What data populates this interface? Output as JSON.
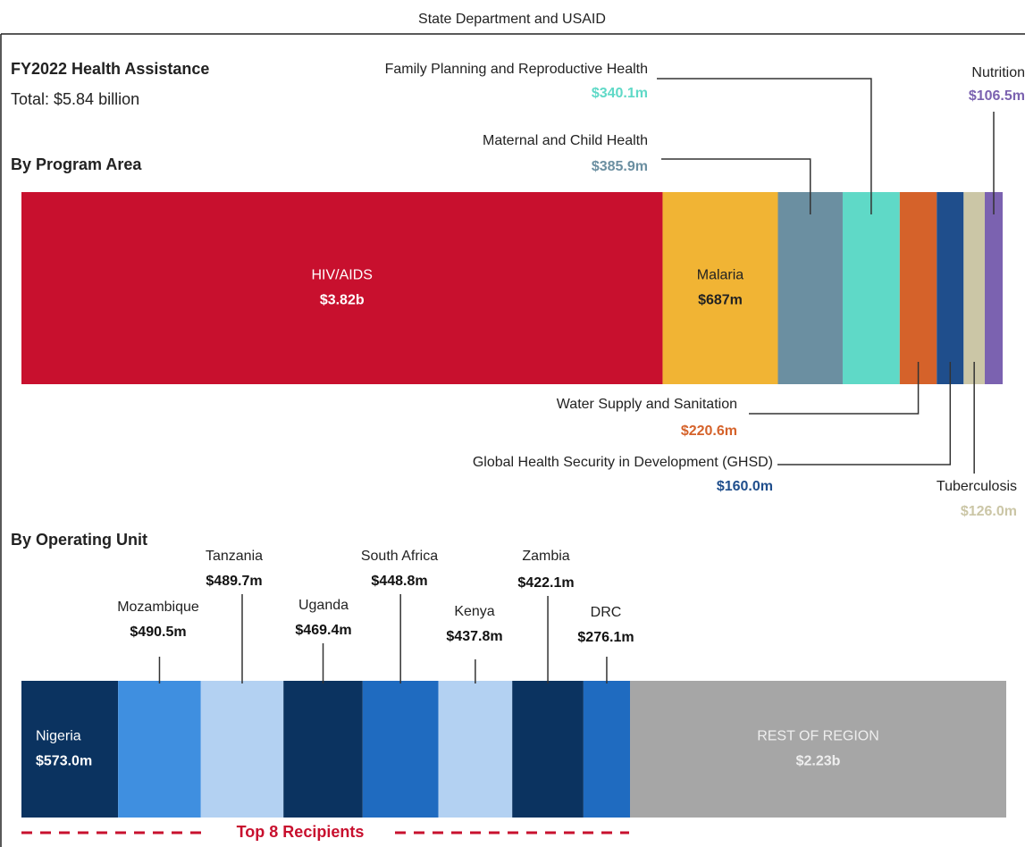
{
  "page": {
    "subtitle": "State Department and USAID",
    "title": "FY2022 Health Assistance",
    "total": "Total: $5.84 billion"
  },
  "chart_data": [
    {
      "type": "stacked_bar",
      "title": "By Program Area",
      "categories": [
        "HIV/AIDS",
        "Malaria",
        "Maternal and Child Health",
        "Family Planning and Reproductive Health",
        "Water Supply and Sanitation",
        "Global Health Security in Development (GHSD)",
        "Tuberculosis",
        "Nutrition"
      ],
      "values": [
        3820,
        687,
        385.9,
        340.1,
        220.6,
        160.0,
        126.0,
        106.5
      ],
      "value_labels": [
        "$3.82b",
        "$687m",
        "$385.9m",
        "$340.1m",
        "$220.6m",
        "$160.0m",
        "$126.0m",
        "$106.5m"
      ],
      "colors": [
        "#c8102e",
        "#f1b434",
        "#6b8fa1",
        "#5fd9c7",
        "#d5622a",
        "#1f4e8c",
        "#cbc6a6",
        "#7b62b0"
      ]
    },
    {
      "type": "stacked_bar",
      "title": "By Operating Unit",
      "categories": [
        "Nigeria",
        "Mozambique",
        "Tanzania",
        "Uganda",
        "South Africa",
        "Kenya",
        "Zambia",
        "DRC",
        "REST OF REGION"
      ],
      "values": [
        573.0,
        490.5,
        489.7,
        469.4,
        448.8,
        437.8,
        422.1,
        276.1,
        2230
      ],
      "value_labels": [
        "$573.0m",
        "$490.5m",
        "$489.7m",
        "$469.4m",
        "$448.8m",
        "$437.8m",
        "$422.1m",
        "$276.1m",
        "$2.23b"
      ],
      "colors": [
        "#0b3360",
        "#3f8fe0",
        "#b3d1f2",
        "#0b3360",
        "#1f6bc0",
        "#b3d1f2",
        "#0b3360",
        "#1f6bc0",
        "#a6a6a6"
      ],
      "annotation": "Top 8 Recipients"
    }
  ]
}
